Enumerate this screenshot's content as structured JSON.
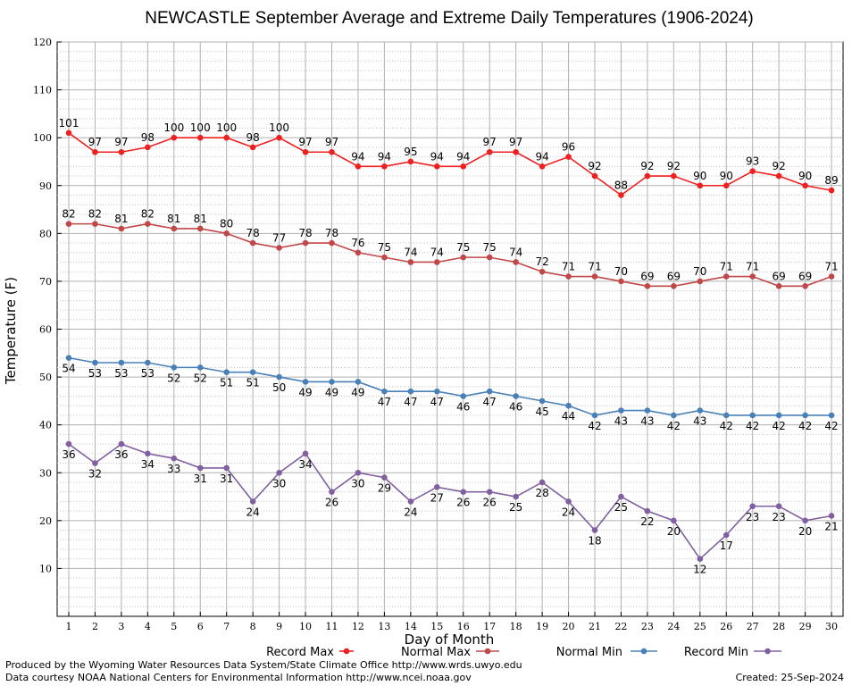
{
  "chart_data": {
    "type": "line",
    "title": "NEWCASTLE September Average and Extreme Daily Temperatures (1906-2024)",
    "xlabel": "Day of Month",
    "ylabel": "Temperature (F)",
    "xlim": [
      1,
      30
    ],
    "ylim": [
      0,
      120
    ],
    "yticks": [
      10,
      20,
      30,
      40,
      50,
      60,
      70,
      80,
      90,
      100,
      110,
      120
    ],
    "grid": true,
    "x": [
      1,
      2,
      3,
      4,
      5,
      6,
      7,
      8,
      9,
      10,
      11,
      12,
      13,
      14,
      15,
      16,
      17,
      18,
      19,
      20,
      21,
      22,
      23,
      24,
      25,
      26,
      27,
      28,
      29,
      30
    ],
    "series": [
      {
        "name": "Record Max",
        "color": "#ee2020",
        "values": [
          101,
          97,
          97,
          98,
          100,
          100,
          100,
          98,
          100,
          97,
          97,
          94,
          94,
          95,
          94,
          94,
          97,
          97,
          94,
          96,
          92,
          88,
          92,
          92,
          90,
          90,
          93,
          92,
          90,
          89
        ]
      },
      {
        "name": "Normal Max",
        "color": "#c04848",
        "values": [
          82,
          82,
          81,
          82,
          81,
          81,
          80,
          78,
          77,
          78,
          78,
          76,
          75,
          74,
          74,
          75,
          75,
          74,
          72,
          71,
          71,
          70,
          69,
          69,
          70,
          71,
          71,
          69,
          69,
          71
        ]
      },
      {
        "name": "Normal Min",
        "color": "#4a80b8",
        "values": [
          54,
          53,
          53,
          53,
          52,
          52,
          51,
          51,
          50,
          49,
          49,
          49,
          47,
          47,
          47,
          46,
          47,
          46,
          45,
          44,
          42,
          43,
          43,
          42,
          43,
          42,
          42,
          42,
          42,
          42
        ]
      },
      {
        "name": "Record Min",
        "color": "#8060a0",
        "values": [
          36,
          32,
          36,
          34,
          33,
          31,
          31,
          24,
          30,
          34,
          26,
          30,
          29,
          24,
          27,
          26,
          26,
          25,
          28,
          24,
          18,
          25,
          22,
          20,
          12,
          17,
          23,
          23,
          20,
          21
        ]
      }
    ],
    "legend_position": "bottom"
  },
  "footer": {
    "line1": "Produced by the Wyoming Water Resources Data System/State Climate Office http://www.wrds.uwyo.edu",
    "line2": "Data courtesy NOAA National Centers for Environmental Information http://www.ncei.noaa.gov",
    "created": "Created:  25-Sep-2024"
  }
}
